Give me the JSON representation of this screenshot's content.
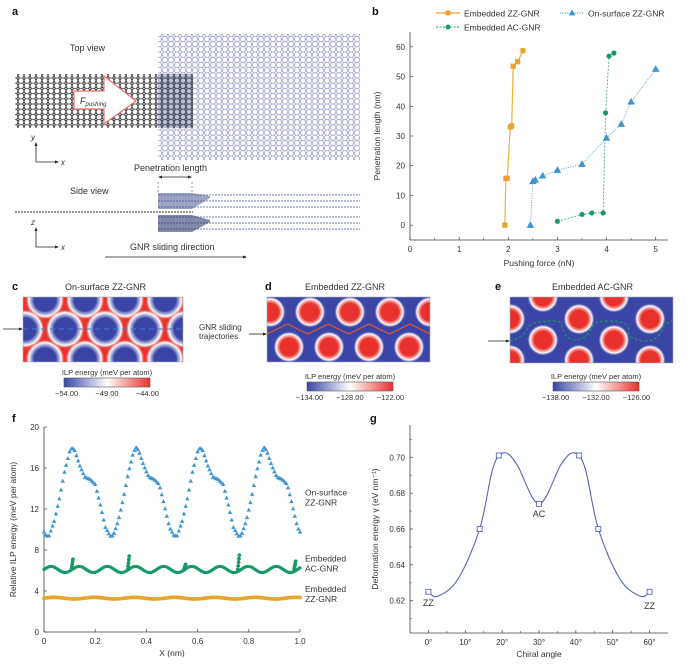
{
  "panels": {
    "a": {
      "letter": "a",
      "top_view_label": "Top view",
      "side_view_label": "Side view",
      "force_label_main": "F",
      "force_label_sub": "pushing",
      "penetration_label": "Penetration length",
      "sliding_direction_label": "GNR sliding direction",
      "axes_top": {
        "vertical": "y",
        "horizontal": "x"
      },
      "axes_side": {
        "vertical": "z",
        "horizontal": "x"
      }
    },
    "c": {
      "letter": "c",
      "title": "On-surface ZZ-GNR",
      "colorbar_title": "ILP energy (meV per atom)",
      "colorbar_ticks": [
        "−54.00",
        "−49.00",
        "−44.00"
      ]
    },
    "d": {
      "letter": "d",
      "title": "Embedded ZZ-GNR",
      "side_label_line1": "GNR sliding",
      "side_label_line2": "trajectories",
      "colorbar_title": "ILP energy (meV per atom)",
      "colorbar_ticks": [
        "−134.00",
        "−128.00",
        "−122.00"
      ]
    },
    "e": {
      "letter": "e",
      "title": "Embedded AC-GNR",
      "colorbar_title": "ILP energy (meV per atom)",
      "colorbar_ticks": [
        "−138.00",
        "−132.00",
        "−126.00"
      ]
    }
  },
  "colors": {
    "orange": "#e8a52c",
    "blue": "#3d95d0",
    "green": "#179b66",
    "navy_line": "#5865b8",
    "heat_low": "#3a45a6",
    "heat_mid": "#ffffff",
    "heat_high": "#e8312d",
    "trajectory_d": "#e8572d"
  },
  "chart_data": [
    {
      "panel": "b",
      "letter": "b",
      "type": "line",
      "xlabel": "Pushing force (nN)",
      "ylabel": "Penetration length (nm)",
      "xlim": [
        0,
        5.25
      ],
      "ylim": [
        -5,
        65
      ],
      "xticks": [
        0,
        1,
        2,
        3,
        4,
        5
      ],
      "xtick_labels": [
        "0",
        "1",
        "2",
        "3",
        "4",
        "5"
      ],
      "yticks": [
        0,
        10,
        20,
        30,
        40,
        50,
        60
      ],
      "ytick_labels": [
        "0",
        "10",
        "20",
        "30",
        "40",
        "50",
        "60"
      ],
      "legend": "top",
      "series": [
        {
          "name": "Embedded ZZ-GNR",
          "marker": "square",
          "line": "solid",
          "x": [
            1.93,
            1.95,
            1.98,
            2.04,
            2.07,
            2.1,
            2.19,
            2.3
          ],
          "y": [
            0,
            15.7,
            15.8,
            33,
            33.4,
            53.5,
            55,
            58.7
          ]
        },
        {
          "name": "On-surface ZZ-GNR",
          "marker": "triangle",
          "line": "dotted",
          "x": [
            2.45,
            2.5,
            2.55,
            2.7,
            3.0,
            3.5,
            4.0,
            4.3,
            4.5,
            5.0
          ],
          "y": [
            0,
            14.7,
            15.2,
            16.6,
            18.5,
            20.5,
            29.3,
            34,
            41.5,
            52.5
          ]
        },
        {
          "name": "Embedded AC-GNR",
          "marker": "circle",
          "line": "dashed",
          "x": [
            3.0,
            3.5,
            3.7,
            3.93,
            3.98,
            4.05,
            4.15
          ],
          "y": [
            1.3,
            3.6,
            4.1,
            4.1,
            37.8,
            56.9,
            57.9
          ]
        }
      ]
    },
    {
      "panel": "f",
      "letter": "f",
      "type": "scatter",
      "xlabel": "X (nm)",
      "ylabel": "Relative ILP energy (meV per atom)",
      "xlim": [
        0,
        1.0
      ],
      "ylim": [
        0,
        20
      ],
      "xticks": [
        0,
        0.2,
        0.4,
        0.6,
        0.8,
        1.0
      ],
      "xtick_labels": [
        "0",
        "0.2",
        "0.4",
        "0.6",
        "0.8",
        "1.0"
      ],
      "yticks": [
        0,
        4,
        8,
        12,
        16,
        20
      ],
      "ytick_labels": [
        "0",
        "4",
        "8",
        "12",
        "16",
        "20"
      ],
      "series": [
        {
          "name": "On-surface ZZ-GNR",
          "label_line1": "On-surface",
          "label_line2": "ZZ-GNR",
          "marker": "triangle",
          "description": "periodic, period 0.25 nm",
          "x": [
            0.0,
            0.02,
            0.04,
            0.06,
            0.08,
            0.1,
            0.11,
            0.12,
            0.14,
            0.16,
            0.18,
            0.2,
            0.22,
            0.24,
            0.26,
            0.27
          ],
          "y": [
            9.3,
            9.4,
            10.8,
            13.0,
            15.6,
            17.6,
            18.0,
            17.7,
            16.2,
            15.1,
            14.9,
            14.4,
            12.4,
            10.2,
            9.3,
            9.4
          ],
          "period": 0.25,
          "min": 9.3,
          "max": 18.0,
          "shoulder": 14.8
        },
        {
          "name": "Embedded AC-GNR",
          "label_line1": "Embedded",
          "label_line2": "AC-GNR",
          "marker": "circle",
          "baseline": 6.1,
          "oscillation_amplitude": 0.3,
          "spike_x": [
            0.11,
            0.33,
            0.55,
            0.76,
            0.98
          ],
          "spike_y": [
            7.1,
            7.4,
            6.6,
            7.5,
            6.9
          ]
        },
        {
          "name": "Embedded ZZ-GNR",
          "label_line1": "Embedded",
          "label_line2": "ZZ-GNR",
          "marker": "square",
          "baseline": 3.3
        }
      ]
    },
    {
      "panel": "g",
      "letter": "g",
      "type": "line",
      "xlabel": "Chiral angle",
      "ylabel": "Deformation energy γ (eV nm⁻¹)",
      "xlim": [
        -5,
        65
      ],
      "ylim": [
        0.602,
        0.718
      ],
      "xticks": [
        0,
        10,
        20,
        30,
        40,
        50,
        60
      ],
      "xtick_labels": [
        "0°",
        "10°",
        "20°",
        "30°",
        "40°",
        "50°",
        "60°"
      ],
      "yticks": [
        0.62,
        0.64,
        0.66,
        0.68,
        0.7
      ],
      "ytick_labels": [
        "0.62",
        "0.64",
        "0.66",
        "0.68",
        "0.70"
      ],
      "series": [
        {
          "name": "Deformation energy",
          "marker": "open-square",
          "x": [
            0,
            13.9,
            19.1,
            30,
            40.9,
            46.1,
            60
          ],
          "y": [
            0.625,
            0.66,
            0.701,
            0.674,
            0.701,
            0.66,
            0.625
          ]
        }
      ],
      "annotations": [
        {
          "text": "ZZ",
          "x": 0,
          "y": 0.625
        },
        {
          "text": "AC",
          "x": 30,
          "y": 0.674
        },
        {
          "text": "ZZ",
          "x": 60,
          "y": 0.625
        }
      ]
    }
  ]
}
